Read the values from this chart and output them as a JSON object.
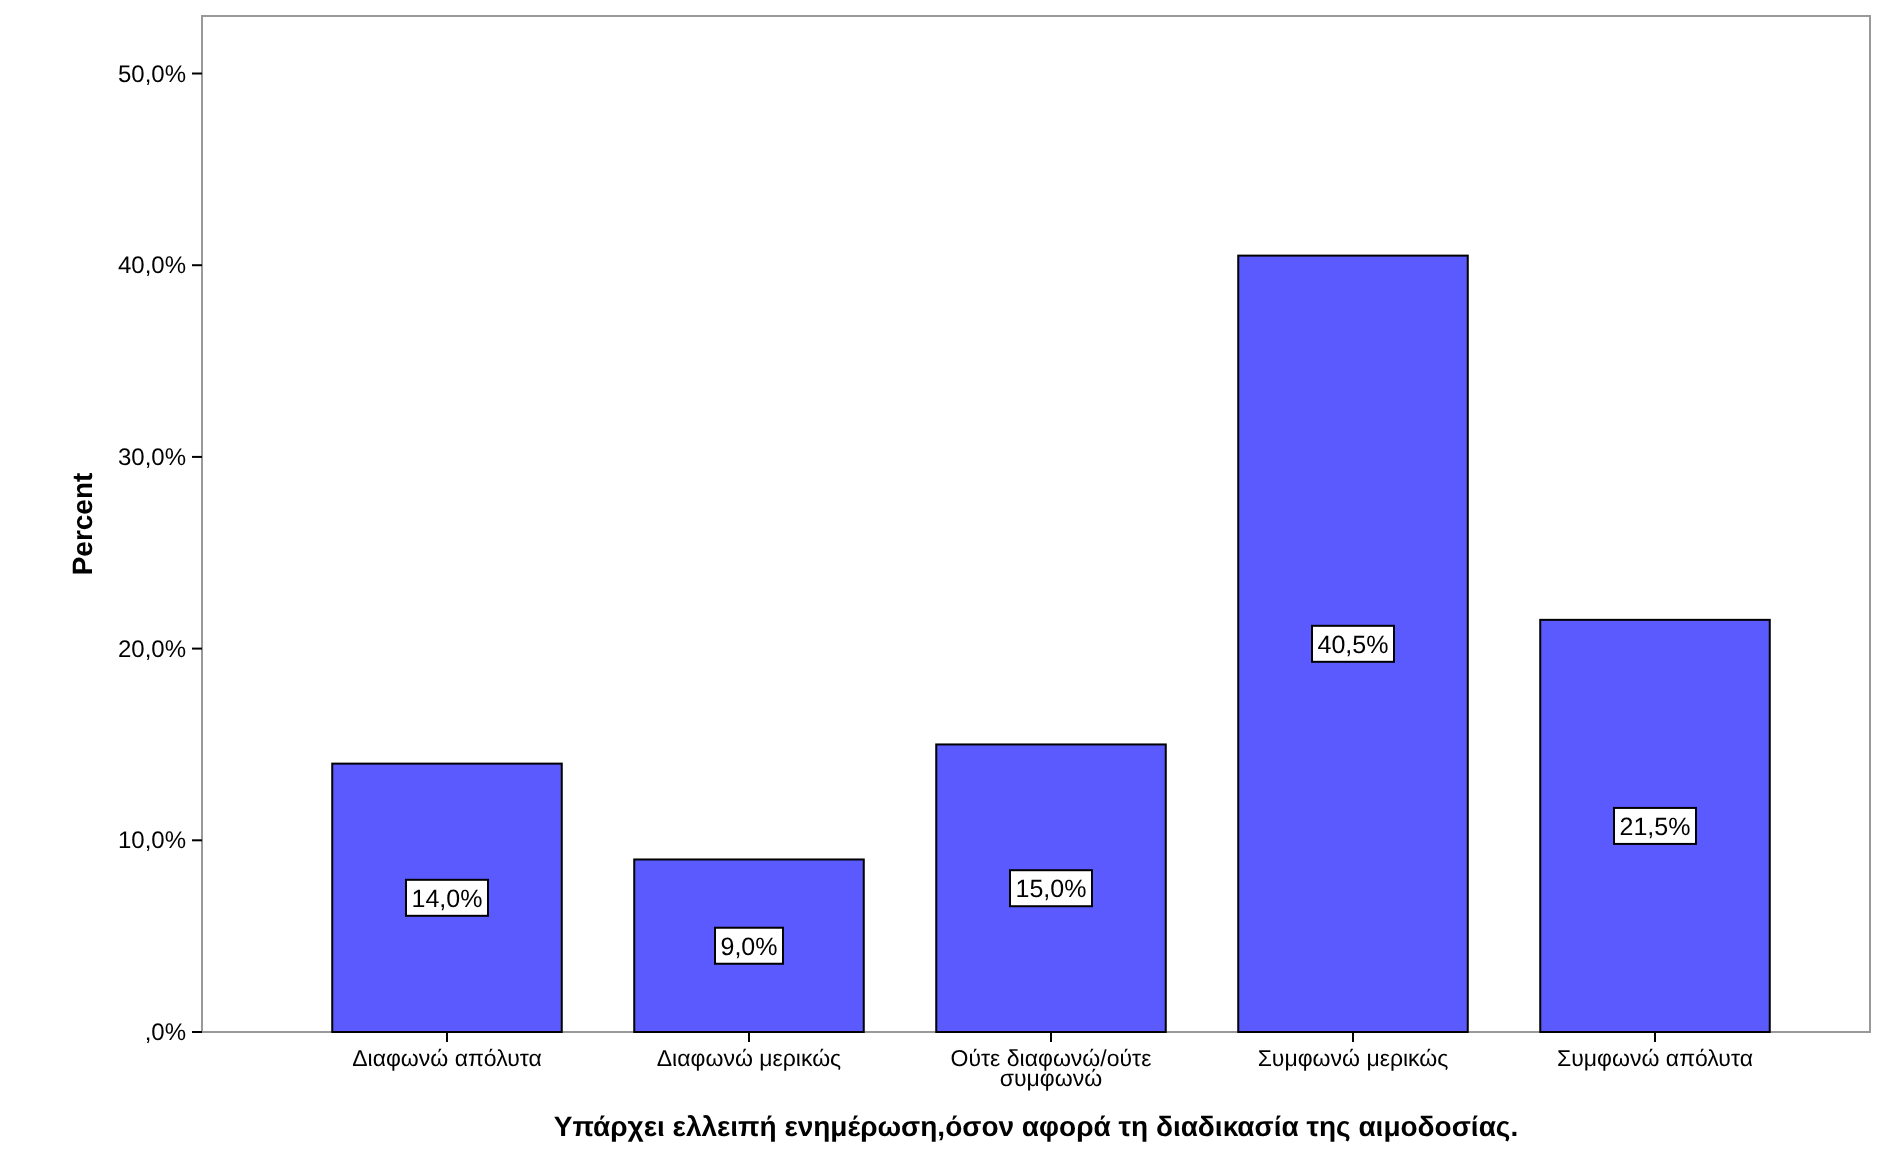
{
  "chart_data": {
    "type": "bar",
    "xlabel": "Υπάρχει ελλειπή ενημέρωση,όσον αφορά τη διαδικασία της αιμοδοσίας.",
    "ylabel": "Percent",
    "categories": [
      "Διαφωνώ απόλυτα",
      "Διαφωνώ μερικώς",
      "Ούτε διαφωνώ/ούτε συμφωνώ",
      "Συμφωνώ μερικώς",
      "Συμφωνώ απόλυτα"
    ],
    "values": [
      14,
      9,
      15,
      40.5,
      21.5
    ],
    "value_labels": [
      "14,0%",
      "9,0%",
      "15,0%",
      "40,5%",
      "21,5%"
    ],
    "color": "#5a5aff",
    "ylim": [
      0,
      53
    ],
    "yticks": [
      {
        "value": 0,
        "label": ",0%"
      },
      {
        "value": 10,
        "label": "10,0%"
      },
      {
        "value": 20,
        "label": "20,0%"
      },
      {
        "value": 30,
        "label": "30,0%"
      },
      {
        "value": 40,
        "label": "40,0%"
      },
      {
        "value": 50,
        "label": "50,0%"
      }
    ],
    "grid": false
  }
}
